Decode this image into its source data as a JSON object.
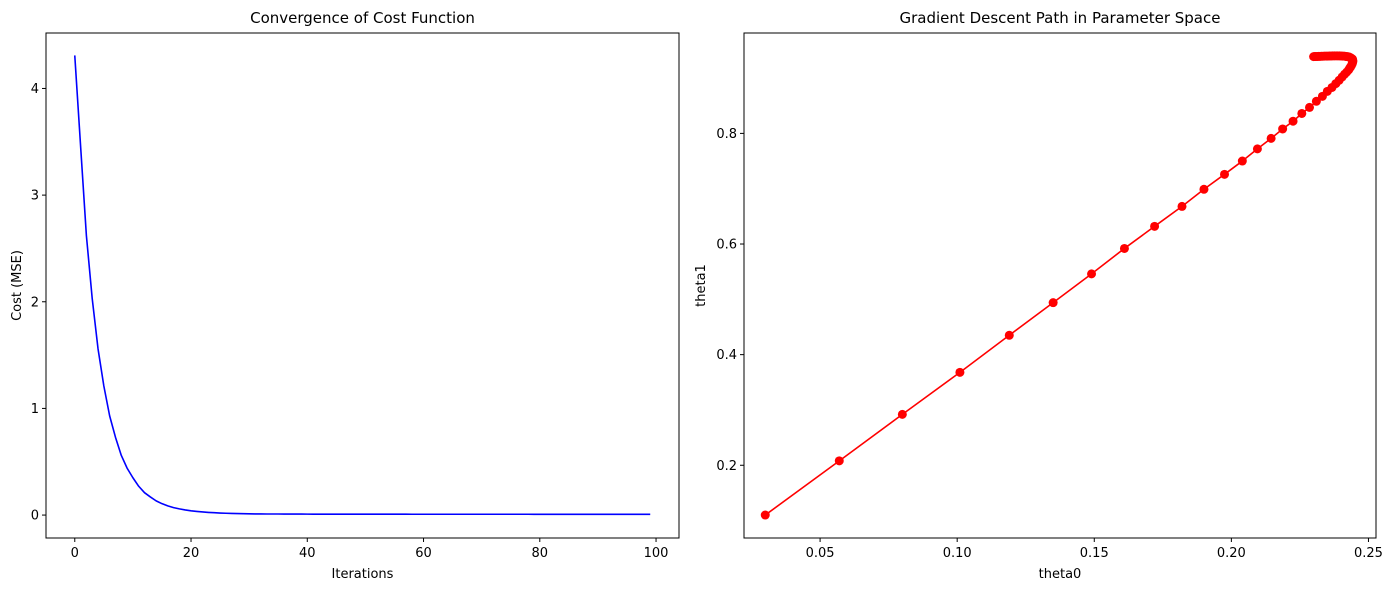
{
  "chart_data": [
    {
      "type": "line",
      "title": "Convergence of Cost Function",
      "xlabel": "Iterations",
      "ylabel": "Cost (MSE)",
      "xlim": [
        -4.95,
        103.95
      ],
      "ylim": [
        -0.215,
        4.52
      ],
      "xticks": [
        0,
        20,
        40,
        60,
        80,
        100
      ],
      "yticks": [
        0,
        1,
        2,
        3,
        4
      ],
      "grid": false,
      "line_color": "#0000ff",
      "series": [
        {
          "x": [
            0,
            1,
            2,
            3,
            4,
            5,
            6,
            7,
            8,
            9,
            10,
            11,
            12,
            13,
            14,
            15,
            16,
            17,
            18,
            19,
            20,
            21,
            22,
            23,
            24,
            25,
            26,
            27,
            28,
            29,
            30,
            31,
            32,
            33,
            34,
            35,
            36,
            37,
            38,
            39,
            40,
            41,
            42,
            43,
            44,
            45,
            46,
            47,
            48,
            49,
            50,
            51,
            52,
            53,
            54,
            55,
            56,
            57,
            58,
            59,
            60,
            61,
            62,
            63,
            64,
            65,
            66,
            67,
            68,
            69,
            70,
            71,
            72,
            73,
            74,
            75,
            76,
            77,
            78,
            79,
            80,
            81,
            82,
            83,
            84,
            85,
            86,
            87,
            88,
            89,
            90,
            91,
            92,
            93,
            94,
            95,
            96,
            97,
            98,
            99
          ],
          "y": [
            4.31,
            3.46,
            2.62,
            2.03,
            1.56,
            1.21,
            0.93,
            0.73,
            0.56,
            0.44,
            0.35,
            0.27,
            0.21,
            0.17,
            0.133,
            0.107,
            0.086,
            0.07,
            0.058,
            0.048,
            0.04,
            0.034,
            0.029,
            0.025,
            0.022,
            0.019,
            0.017,
            0.015,
            0.014,
            0.013,
            0.012,
            0.011,
            0.011,
            0.01,
            0.01,
            0.01,
            0.0095,
            0.0093,
            0.0091,
            0.009,
            0.0088,
            0.0087,
            0.0086,
            0.0085,
            0.0084,
            0.0083,
            0.0083,
            0.0082,
            0.0082,
            0.0081,
            0.0081,
            0.008,
            0.008,
            0.008,
            0.0079,
            0.0079,
            0.0079,
            0.0079,
            0.0078,
            0.0078,
            0.0078,
            0.0078,
            0.0078,
            0.0077,
            0.0077,
            0.0077,
            0.0077,
            0.0077,
            0.0077,
            0.0077,
            0.0076,
            0.0076,
            0.0076,
            0.0076,
            0.0076,
            0.0076,
            0.0076,
            0.0076,
            0.0076,
            0.0075,
            0.0075,
            0.0075,
            0.0075,
            0.0075,
            0.0075,
            0.0075,
            0.0075,
            0.0075,
            0.0075,
            0.0075,
            0.0075,
            0.0075,
            0.0074,
            0.0074,
            0.0074,
            0.0074,
            0.0074,
            0.0074,
            0.0074,
            0.0074
          ]
        }
      ]
    },
    {
      "type": "line",
      "title": "Gradient Descent Path in Parameter Space",
      "xlabel": "theta0",
      "ylabel": "theta1",
      "xlim": [
        0.02225,
        0.25275
      ],
      "ylim": [
        0.0685,
        0.9815
      ],
      "xticks": [
        0.05,
        0.1,
        0.15,
        0.2,
        0.25
      ],
      "xtick_labels": [
        "0.05",
        "0.10",
        "0.15",
        "0.20",
        "0.25"
      ],
      "yticks": [
        0.2,
        0.4,
        0.6,
        0.8
      ],
      "ytick_labels": [
        "0.2",
        "0.4",
        "0.6",
        "0.8"
      ],
      "grid": false,
      "line_color": "#ff0000",
      "marker": "circle",
      "series": [
        {
          "x": [
            0.03,
            0.057,
            0.08,
            0.101,
            0.119,
            0.135,
            0.149,
            0.161,
            0.172,
            0.182,
            0.19,
            0.1975,
            0.204,
            0.2095,
            0.2145,
            0.2187,
            0.2225,
            0.2257,
            0.2285,
            0.231,
            0.2332,
            0.235,
            0.2367,
            0.2381,
            0.2393,
            0.2404,
            0.2413,
            0.2421,
            0.2428,
            0.2433,
            0.2437,
            0.244,
            0.2442,
            0.2443,
            0.2443,
            0.2442,
            0.244,
            0.2437,
            0.2434,
            0.243,
            0.2426,
            0.2421,
            0.2416,
            0.2411,
            0.2405,
            0.24,
            0.2394,
            0.2388,
            0.2382,
            0.2376,
            0.237,
            0.2364,
            0.2358,
            0.2352,
            0.2346,
            0.234,
            0.2334,
            0.2328,
            0.2323,
            0.2318,
            0.2313,
            0.2308,
            0.2304,
            0.23
          ],
          "y": [
            0.11,
            0.208,
            0.292,
            0.368,
            0.435,
            0.494,
            0.546,
            0.592,
            0.632,
            0.668,
            0.699,
            0.726,
            0.75,
            0.772,
            0.791,
            0.808,
            0.822,
            0.836,
            0.847,
            0.858,
            0.867,
            0.876,
            0.883,
            0.89,
            0.896,
            0.902,
            0.907,
            0.911,
            0.915,
            0.919,
            0.922,
            0.925,
            0.928,
            0.93,
            0.932,
            0.934,
            0.935,
            0.936,
            0.937,
            0.938,
            0.9385,
            0.939,
            0.9393,
            0.9396,
            0.9398,
            0.94,
            0.9401,
            0.9402,
            0.9402,
            0.9402,
            0.9401,
            0.94,
            0.9399,
            0.9398,
            0.9397,
            0.9396,
            0.9395,
            0.9394,
            0.9393,
            0.9392,
            0.9391,
            0.939,
            0.9389,
            0.9388
          ]
        }
      ]
    }
  ]
}
